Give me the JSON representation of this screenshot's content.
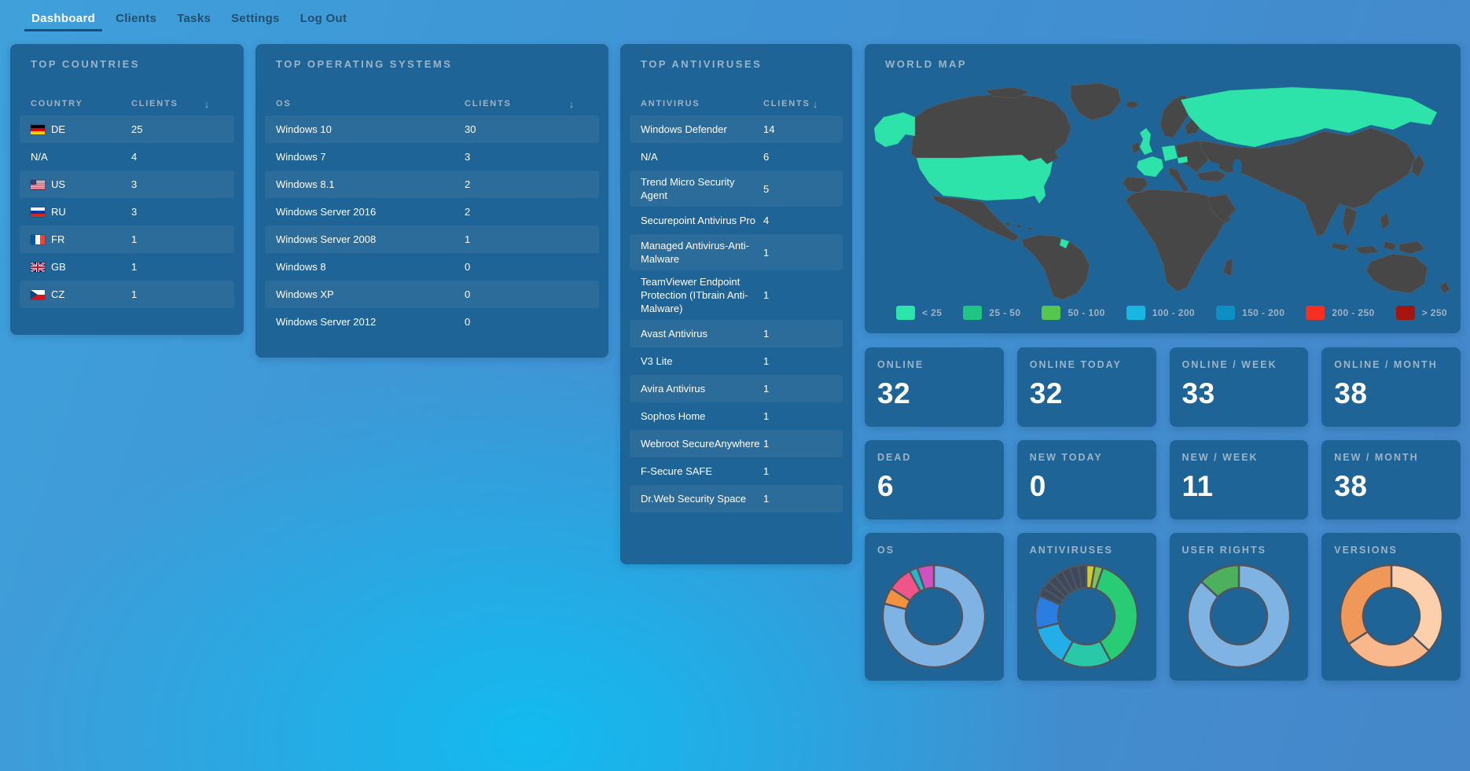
{
  "theme": {
    "background_blue": "#3f93d4",
    "background_cyan_glow": "#12bbf0",
    "panel_blue": "#1f6496",
    "muted_label": "#9eb4c6",
    "map_land": "#474747",
    "map_highlight": "#2ee3a9",
    "active_underline": "#1d4e74"
  },
  "nav": {
    "items": [
      {
        "label": "Dashboard",
        "active": true
      },
      {
        "label": "Clients",
        "active": false
      },
      {
        "label": "Tasks",
        "active": false
      },
      {
        "label": "Settings",
        "active": false
      },
      {
        "label": "Log Out",
        "active": false
      }
    ]
  },
  "countries": {
    "title": "TOP COUNTRIES",
    "col_name": "COUNTRY",
    "col_clients": "CLIENTS",
    "sort_icon": "↓",
    "rows": [
      {
        "code": "DE",
        "flag": "de",
        "clients": "25"
      },
      {
        "code": "N/A",
        "flag": "",
        "clients": "4"
      },
      {
        "code": "US",
        "flag": "us",
        "clients": "3"
      },
      {
        "code": "RU",
        "flag": "ru",
        "clients": "3"
      },
      {
        "code": "FR",
        "flag": "fr",
        "clients": "1"
      },
      {
        "code": "GB",
        "flag": "gb",
        "clients": "1"
      },
      {
        "code": "CZ",
        "flag": "cz",
        "clients": "1"
      }
    ]
  },
  "os": {
    "title": "TOP OPERATING SYSTEMS",
    "col_name": "OS",
    "col_clients": "CLIENTS",
    "sort_icon": "↓",
    "rows": [
      {
        "name": "Windows 10",
        "clients": "30"
      },
      {
        "name": "Windows 7",
        "clients": "3"
      },
      {
        "name": "Windows 8.1",
        "clients": "2"
      },
      {
        "name": "Windows Server 2016",
        "clients": "2"
      },
      {
        "name": "Windows Server 2008",
        "clients": "1"
      },
      {
        "name": "Windows 8",
        "clients": "0"
      },
      {
        "name": "Windows XP",
        "clients": "0"
      },
      {
        "name": "Windows Server 2012",
        "clients": "0"
      }
    ]
  },
  "antiviruses": {
    "title": "TOP ANTIVIRUSES",
    "col_name": "ANTIVIRUS",
    "col_clients": "CLIENTS",
    "sort_icon": "↓",
    "rows": [
      {
        "name": "Windows Defender",
        "clients": "14"
      },
      {
        "name": "N/A",
        "clients": "6"
      },
      {
        "name": "Trend Micro Security Agent",
        "clients": "5"
      },
      {
        "name": "Securepoint Antivirus Pro",
        "clients": "4"
      },
      {
        "name": "Managed Antivirus-Anti-Malware",
        "clients": "1"
      },
      {
        "name": "TeamViewer Endpoint Protection (ITbrain Anti-Malware)",
        "clients": "1"
      },
      {
        "name": "Avast Antivirus",
        "clients": "1"
      },
      {
        "name": "V3 Lite",
        "clients": "1"
      },
      {
        "name": "Avira Antivirus",
        "clients": "1"
      },
      {
        "name": "Sophos Home",
        "clients": "1"
      },
      {
        "name": "Webroot SecureAnywhere",
        "clients": "1"
      },
      {
        "name": "F-Secure SAFE",
        "clients": "1"
      },
      {
        "name": "Dr.Web Security Space",
        "clients": "1"
      }
    ]
  },
  "map": {
    "title": "WORLD MAP",
    "highlighted_countries": [
      "US",
      "RU",
      "DE",
      "FR",
      "GB",
      "CZ",
      "GY"
    ],
    "legend": [
      {
        "label": "< 25",
        "color": "#2ce5ab"
      },
      {
        "label": "25 - 50",
        "color": "#20c584"
      },
      {
        "label": "50 - 100",
        "color": "#55c74f"
      },
      {
        "label": "100 - 200",
        "color": "#18b6e2"
      },
      {
        "label": "150 - 200",
        "color": "#0d8fc2"
      },
      {
        "label": "200 - 250",
        "color": "#f53022"
      },
      {
        "label": "> 250",
        "color": "#a51510"
      }
    ]
  },
  "stats": [
    {
      "label": "ONLINE",
      "value": "32"
    },
    {
      "label": "ONLINE TODAY",
      "value": "32"
    },
    {
      "label": "ONLINE / WEEK",
      "value": "33"
    },
    {
      "label": "ONLINE / MONTH",
      "value": "38"
    },
    {
      "label": "DEAD",
      "value": "6"
    },
    {
      "label": "NEW TODAY",
      "value": "0"
    },
    {
      "label": "NEW / WEEK",
      "value": "11"
    },
    {
      "label": "NEW / MONTH",
      "value": "38"
    }
  ],
  "chart_data": [
    {
      "id": "os",
      "type": "pie",
      "title": "OS",
      "donut": true,
      "series": [
        {
          "label": "Windows 10",
          "value": 30,
          "color": "#7fb3e3"
        },
        {
          "label": "Windows 8.1",
          "value": 2,
          "color": "#f29140"
        },
        {
          "label": "Windows 7",
          "value": 3,
          "color": "#f0558a"
        },
        {
          "label": "Windows Server 2008",
          "value": 1,
          "color": "#2ab6c9"
        },
        {
          "label": "Windows Server 2016",
          "value": 2,
          "color": "#ce53c0"
        }
      ]
    },
    {
      "id": "antiviruses",
      "type": "pie",
      "title": "ANTIVIRUSES",
      "donut": true,
      "series": [
        {
          "label": "Managed Antivirus-Anti-Malware",
          "value": 1,
          "color": "#d4c928"
        },
        {
          "label": "TeamViewer Endpoint Protection (ITbrain Anti-Malware)",
          "value": 1,
          "color": "#7ec452"
        },
        {
          "label": "Windows Defender",
          "value": 14,
          "color": "#27cc74"
        },
        {
          "label": "N/A",
          "value": 6,
          "color": "#28c8a8"
        },
        {
          "label": "Trend Micro Security Agent",
          "value": 5,
          "color": "#24aee8"
        },
        {
          "label": "Securepoint Antivirus Pro",
          "value": 4,
          "color": "#2a7de1"
        },
        {
          "label": "Avast Antivirus",
          "value": 1,
          "color": "#3e4a5c"
        },
        {
          "label": "V3 Lite",
          "value": 1,
          "color": "#3e4a5c"
        },
        {
          "label": "Avira Antivirus",
          "value": 1,
          "color": "#3e4a5c"
        },
        {
          "label": "Sophos Home",
          "value": 1,
          "color": "#3e4a5c"
        },
        {
          "label": "Webroot SecureAnywhere",
          "value": 1,
          "color": "#3e4a5c"
        },
        {
          "label": "F-Secure SAFE",
          "value": 1,
          "color": "#3e4a5c"
        },
        {
          "label": "Dr.Web Security Space",
          "value": 1,
          "color": "#3e4a5c"
        }
      ]
    },
    {
      "id": "user-rights",
      "type": "pie",
      "title": "USER RIGHTS",
      "donut": true,
      "series": [
        {
          "label": "",
          "value": 33,
          "color": "#7fb3e3"
        },
        {
          "label": "",
          "value": 5,
          "color": "#4db05c"
        }
      ]
    },
    {
      "id": "versions",
      "type": "pie",
      "title": "VERSIONS",
      "donut": true,
      "series": [
        {
          "label": "",
          "value": 14,
          "color": "#fcd0ad"
        },
        {
          "label": "",
          "value": 11,
          "color": "#f8b88c"
        },
        {
          "label": "",
          "value": 13,
          "color": "#f0975a"
        }
      ]
    }
  ]
}
